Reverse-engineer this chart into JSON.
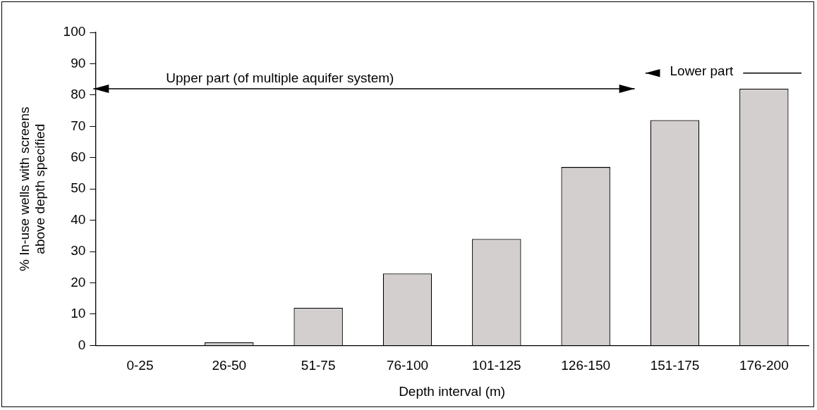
{
  "chart_data": {
    "type": "bar",
    "xlabel": "Depth interval (m)",
    "ylabel": "% In-use wells with screens above depth specified",
    "categories": [
      "0-25",
      "26-50",
      "51-75",
      "76-100",
      "101-125",
      "126-150",
      "151-175",
      "176-200"
    ],
    "values": [
      0,
      1,
      12,
      23,
      34,
      57,
      72,
      82
    ],
    "color": "#d3cfce",
    "ylim": [
      0,
      100
    ],
    "yticks": [
      0,
      10,
      20,
      30,
      40,
      50,
      60,
      70,
      80,
      90,
      100
    ],
    "grid": false,
    "legend": false,
    "annotations": [
      "Upper part (of multiple aquifer system)",
      "Lower part"
    ]
  }
}
